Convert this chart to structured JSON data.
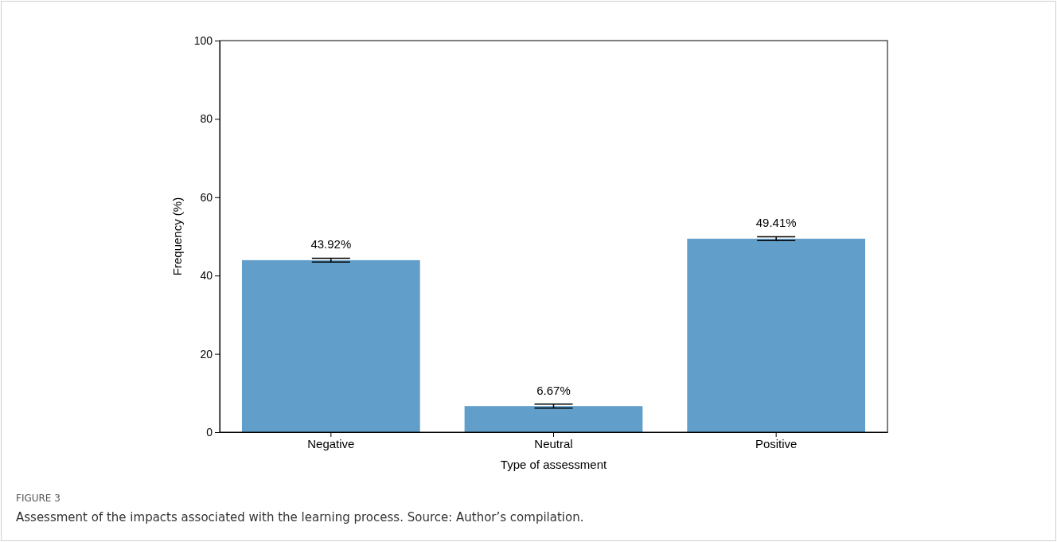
{
  "chart_data": {
    "type": "bar",
    "xlabel": "Type of assessment",
    "ylabel": "Frequency (%)",
    "categories": [
      "Negative",
      "Neutral",
      "Positive"
    ],
    "values": [
      43.92,
      6.67,
      49.41
    ],
    "errors": [
      0.5,
      0.5,
      0.5
    ],
    "value_labels": [
      "43.92%",
      "6.67%",
      "49.41%"
    ],
    "color": "#619fca",
    "ylim": [
      0,
      100
    ],
    "yticks": [
      0,
      20,
      40,
      60,
      80,
      100
    ],
    "grid": false,
    "annotations": [
      "FIGURE 3",
      "Assessment of the impacts associated with the learning process. Source: Author’s compilation."
    ]
  }
}
